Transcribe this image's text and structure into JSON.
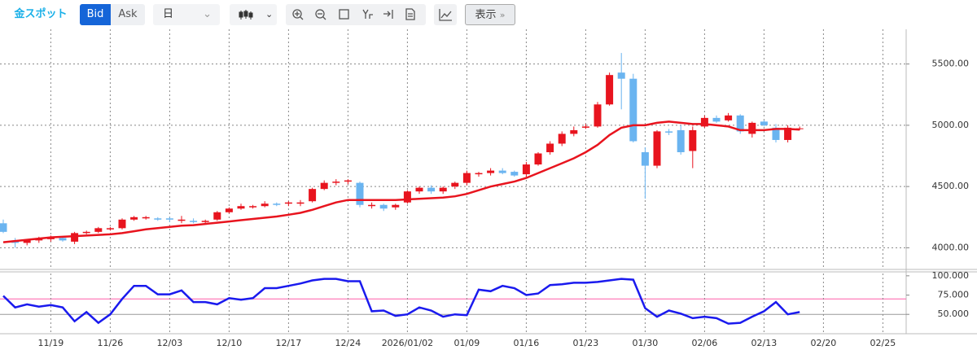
{
  "toolbar": {
    "symbol": "金スポット",
    "bid": "Bid",
    "ask": "Ask",
    "period": "日",
    "display": "表示"
  },
  "chart_data": {
    "type": "candlestick",
    "categories": [
      null,
      null,
      null,
      null,
      "11/19",
      null,
      null,
      null,
      null,
      "11/26",
      null,
      null,
      null,
      null,
      "12/03",
      null,
      null,
      null,
      null,
      "12/10",
      null,
      null,
      null,
      null,
      "12/17",
      null,
      null,
      null,
      null,
      "12/24",
      null,
      null,
      null,
      null,
      "2026/01/02",
      null,
      null,
      null,
      null,
      "01/09",
      null,
      null,
      null,
      null,
      "01/16",
      null,
      null,
      null,
      null,
      "01/23",
      null,
      null,
      null,
      null,
      "01/30",
      null,
      null,
      null,
      null,
      "02/06",
      null,
      null,
      null,
      null,
      "02/13",
      null,
      null,
      null,
      null,
      "02/20",
      null,
      null,
      null,
      null,
      "02/25"
    ],
    "open": [
      4200,
      4060,
      4040,
      4060,
      4070,
      4080,
      4050,
      4120,
      4130,
      4150,
      4160,
      4230,
      4240,
      4240,
      4240,
      4220,
      4220,
      4210,
      4230,
      4290,
      4320,
      4330,
      4340,
      4360,
      4360,
      4360,
      4380,
      4480,
      4530,
      4540,
      4530,
      4340,
      4350,
      4330,
      4370,
      4460,
      4490,
      4460,
      4500,
      4530,
      4600,
      4610,
      4630,
      4620,
      4600,
      4680,
      4780,
      4850,
      4930,
      4980,
      4990,
      5170,
      5430,
      5380,
      4780,
      4670,
      4950,
      4960,
      4790,
      4990,
      5060,
      5040,
      5080,
      4930,
      5030,
      4980,
      4880,
      4970,
      null,
      null,
      null,
      null,
      null,
      null,
      null
    ],
    "high": [
      4230,
      4080,
      4070,
      4090,
      4100,
      4090,
      4130,
      4140,
      4170,
      4170,
      4240,
      4260,
      4260,
      4250,
      4250,
      4260,
      4240,
      4230,
      4300,
      4330,
      4360,
      4350,
      4380,
      4370,
      4380,
      4390,
      4490,
      4550,
      4560,
      4560,
      4540,
      4370,
      4360,
      4360,
      4470,
      4500,
      4510,
      4500,
      4540,
      4630,
      4620,
      4650,
      4650,
      4630,
      4700,
      4780,
      4870,
      4950,
      4990,
      5010,
      5190,
      5430,
      5590,
      5420,
      4820,
      4960,
      4970,
      5000,
      4990,
      5080,
      5080,
      5100,
      5090,
      5030,
      5040,
      5010,
      5000,
      4990,
      null,
      null,
      null,
      null,
      null,
      null,
      null
    ],
    "low": [
      4120,
      4000,
      4020,
      4040,
      4050,
      4050,
      4030,
      4110,
      4120,
      4140,
      4150,
      4220,
      4230,
      4220,
      4210,
      4200,
      4200,
      4190,
      4220,
      4280,
      4310,
      4320,
      4330,
      4340,
      4340,
      4340,
      4370,
      4470,
      4510,
      4520,
      4330,
      4320,
      4300,
      4310,
      4360,
      4440,
      4440,
      4440,
      4480,
      4510,
      4580,
      4590,
      4600,
      4580,
      4580,
      4670,
      4760,
      4830,
      4910,
      4970,
      4980,
      5160,
      5130,
      4860,
      4400,
      4650,
      4920,
      4760,
      4650,
      4980,
      5020,
      5030,
      4930,
      4900,
      4990,
      4860,
      4860,
      4960,
      null,
      null,
      null,
      null,
      null,
      null,
      null
    ],
    "close": [
      4130,
      4040,
      4060,
      4070,
      4080,
      4060,
      4120,
      4130,
      4160,
      4160,
      4230,
      4250,
      4250,
      4230,
      4230,
      4230,
      4210,
      4220,
      4290,
      4320,
      4340,
      4340,
      4360,
      4350,
      4370,
      4370,
      4480,
      4530,
      4540,
      4550,
      4350,
      4350,
      4320,
      4350,
      4460,
      4490,
      4460,
      4490,
      4530,
      4610,
      4610,
      4630,
      4610,
      4590,
      4680,
      4770,
      4850,
      4930,
      4960,
      4990,
      5170,
      5410,
      5380,
      4870,
      4670,
      4950,
      4940,
      4780,
      4960,
      5060,
      5030,
      5080,
      4950,
      5020,
      5000,
      4880,
      4980,
      4975,
      null,
      null,
      null,
      null,
      null,
      null,
      null
    ],
    "up_color": "#e8141e",
    "down_color": "#6ab4f0",
    "moving_average": {
      "color": "#e8141e",
      "values": [
        4045,
        4055,
        4065,
        4075,
        4085,
        4090,
        4095,
        4100,
        4105,
        4110,
        4120,
        4135,
        4150,
        4160,
        4170,
        4180,
        4185,
        4195,
        4205,
        4215,
        4225,
        4235,
        4245,
        4255,
        4270,
        4285,
        4310,
        4340,
        4370,
        4390,
        4390,
        4390,
        4390,
        4390,
        4395,
        4400,
        4405,
        4410,
        4420,
        4440,
        4470,
        4500,
        4520,
        4540,
        4570,
        4610,
        4650,
        4690,
        4730,
        4780,
        4840,
        4920,
        4980,
        5000,
        5000,
        5020,
        5030,
        5020,
        5010,
        5010,
        5000,
        4990,
        4960,
        4960,
        4960,
        4970,
        4970,
        4965,
        null,
        null,
        null,
        null,
        null,
        null,
        null
      ]
    },
    "ylim": [
      3830,
      5770
    ],
    "yticks": [
      {
        "value": 4000,
        "label": "4000.00"
      },
      {
        "value": 4500,
        "label": "4500.00"
      },
      {
        "value": 5000,
        "label": "5000.00"
      },
      {
        "value": 5500,
        "label": "5500.00"
      }
    ],
    "grid": true,
    "indicator": {
      "color": "#1a1aee",
      "values": [
        74,
        59,
        63,
        60,
        62,
        59,
        41,
        53,
        39,
        50,
        70,
        87,
        87,
        76,
        76,
        81,
        66,
        66,
        63,
        71,
        69,
        71,
        84,
        84,
        87,
        90,
        94,
        96,
        96,
        93,
        93,
        54,
        55,
        48,
        50,
        59,
        55,
        47,
        50,
        49,
        82,
        80,
        87,
        84,
        75,
        77,
        88,
        89,
        91,
        91,
        92,
        94,
        96,
        95,
        58,
        47,
        55,
        51,
        45,
        47,
        45,
        38,
        39,
        47,
        54,
        66,
        50,
        53,
        null,
        null,
        null,
        null,
        null,
        null,
        null
      ],
      "ylim": [
        27,
        103
      ],
      "yticks": [
        {
          "value": 50,
          "label": "50.000"
        },
        {
          "value": 75,
          "label": "75.000"
        },
        {
          "value": 100,
          "label": "100.000"
        }
      ],
      "levels": [
        {
          "value": 70,
          "color": "#ff5fa8"
        },
        {
          "value": 50,
          "color": "#999999"
        }
      ]
    }
  }
}
